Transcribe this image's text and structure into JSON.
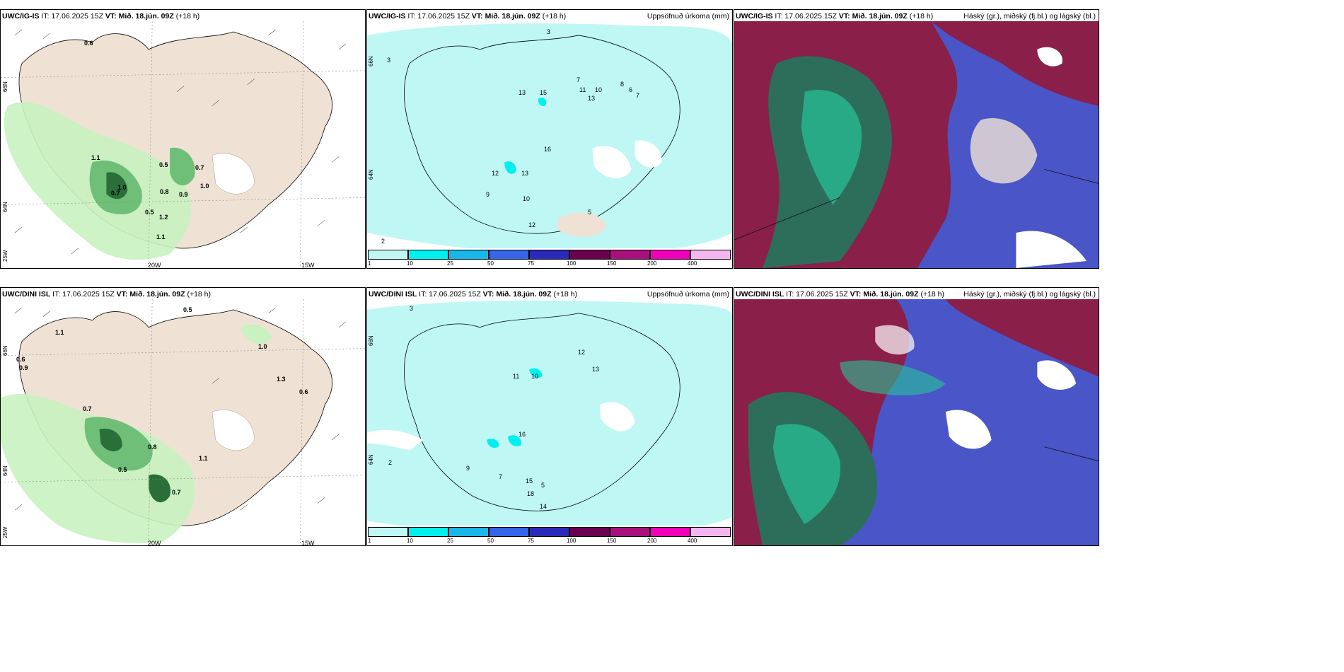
{
  "panels": [
    {
      "model": "UWC/IG-IS",
      "it": "IT: 17.06.2025 15Z",
      "vt": "VT: Mið. 18.jún. 09Z",
      "lead": "(+18 h)",
      "right": ""
    },
    {
      "model": "UWC/IG-IS",
      "it": "IT: 17.06.2025 15Z",
      "vt": "VT: Mið. 18.jún. 09Z",
      "lead": "(+18 h)",
      "right": "Uppsöfnuð úrkoma (mm)"
    },
    {
      "model": "UWC/IG-IS",
      "it": "IT: 17.06.2025 15Z",
      "vt": "VT: Mið. 18.jún. 09Z",
      "lead": "(+18 h)",
      "right": "Háský (gr.), miðský (fj.bl.) og lágský (bl.)"
    },
    {
      "model": "UWC/DINI ISL",
      "it": "IT: 17.06.2025 15Z",
      "vt": "VT: Mið. 18.jún. 09Z",
      "lead": "(+18 h)",
      "right": ""
    },
    {
      "model": "UWC/DINI ISL",
      "it": "IT: 17.06.2025 15Z",
      "vt": "VT: Mið. 18.jún. 09Z",
      "lead": "(+18 h)",
      "right": "Uppsöfnuð úrkoma (mm)"
    },
    {
      "model": "UWC/DINI ISL",
      "it": "IT: 17.06.2025 15Z",
      "vt": "VT: Mið. 18.jún. 09Z",
      "lead": "(+18 h)",
      "right": "Háský (gr.), miðský (fj.bl.) og lágský (bl.)"
    }
  ],
  "axis_labels": {
    "lat66": "66N",
    "lat64": "64N",
    "lon20": "20W",
    "lon15": "15W",
    "lon25": "25W"
  },
  "colorbar": {
    "ticks": [
      "1",
      "10",
      "25",
      "50",
      "75",
      "100",
      "150",
      "200",
      "400"
    ],
    "colors": [
      "#bff7f5",
      "#00f0f0",
      "#19b7e8",
      "#3765e8",
      "#2a2ab8",
      "#6a0050",
      "#a8107e",
      "#f000b8",
      "#f3b6f0"
    ]
  },
  "precip_values_top": [
    "3",
    "13",
    "15",
    "7",
    "11",
    "10",
    "13",
    "8",
    "7",
    "6",
    "16",
    "12",
    "13",
    "9",
    "10",
    "5",
    "3",
    "12",
    "2"
  ],
  "precip_values_bottom": [
    "3",
    "12",
    "11",
    "10",
    "13",
    "16",
    "18",
    "14",
    "15",
    "9",
    "7",
    "5",
    "2"
  ],
  "wind_values_top": [
    "0.6",
    "1.1",
    "0.5",
    "0.7",
    "1.0",
    "0.8",
    "0.9",
    "0.5",
    "1.2",
    "0.7",
    "1.0",
    "1.1"
  ],
  "wind_values_bottom": [
    "0.5",
    "1.1",
    "1.0",
    "0.6",
    "0.9",
    "0.7",
    "0.8",
    "1.3",
    "0.6",
    "0.5",
    "0.7",
    "1.1"
  ],
  "colors": {
    "land": "#efe2d4",
    "sea": "#ffffff",
    "precip_light": "#bff7f5",
    "green_light": "#c8f2c0",
    "green_dark": "#2a6f3a",
    "cloud_high": "#2d6e5a",
    "cloud_mid": "#8a1f4a",
    "cloud_low": "#4a55c8"
  }
}
